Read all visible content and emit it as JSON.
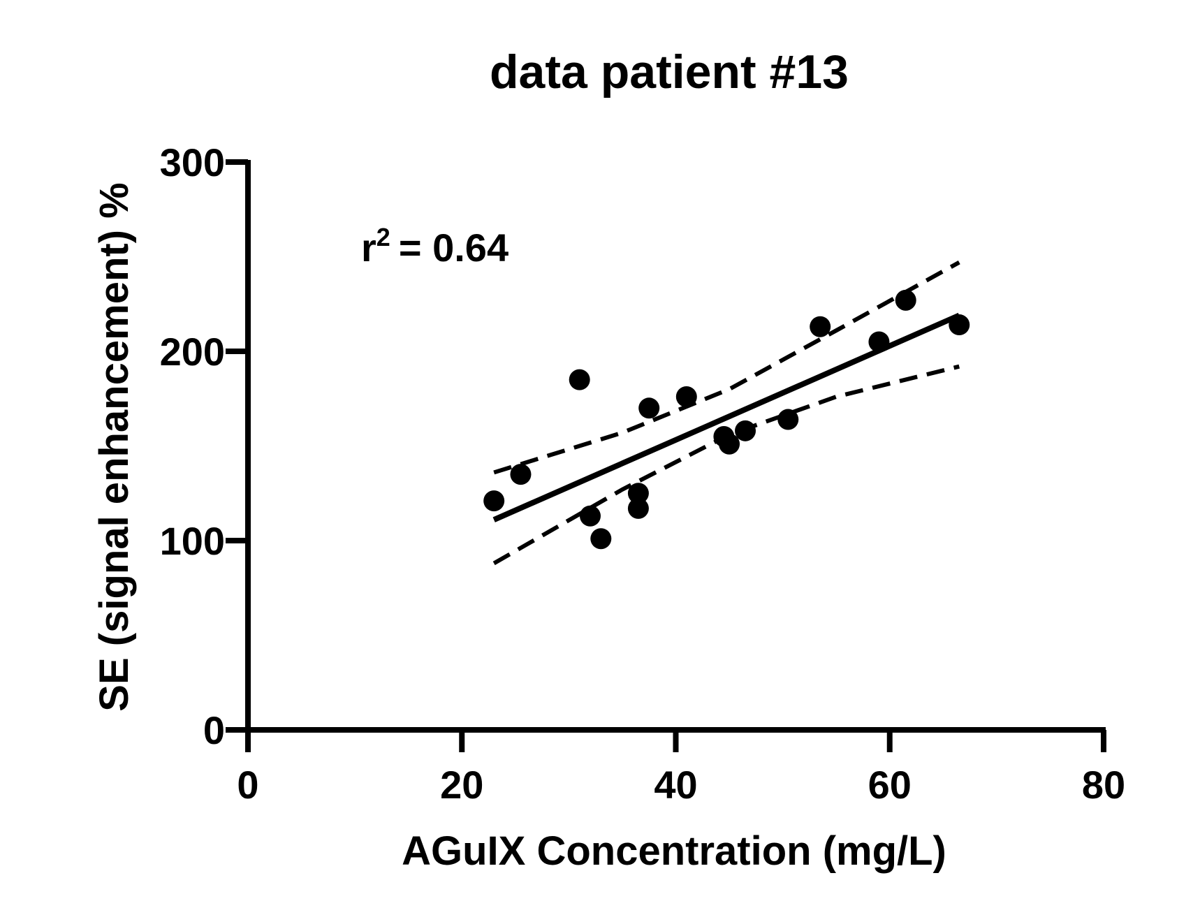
{
  "chart_data": {
    "type": "scatter",
    "title": "data patient #13",
    "xlabel": "AGuIX Concentration (mg/L)",
    "ylabel": "SE (signal enhancement) %",
    "xlim": [
      0,
      80
    ],
    "ylim": [
      0,
      300
    ],
    "x_ticks": [
      "0",
      "20",
      "40",
      "60",
      "80"
    ],
    "y_ticks": [
      "0",
      "100",
      "200",
      "300"
    ],
    "x_tick_values": [
      0,
      20,
      40,
      60,
      80
    ],
    "y_tick_values": [
      0,
      100,
      200,
      300
    ],
    "grid": false,
    "annotation": {
      "base": "r",
      "superscript": "2",
      "text": "= 0.64"
    },
    "points": [
      {
        "x": 23.0,
        "y": 121
      },
      {
        "x": 25.5,
        "y": 135
      },
      {
        "x": 31.0,
        "y": 185
      },
      {
        "x": 32.0,
        "y": 113
      },
      {
        "x": 33.0,
        "y": 101
      },
      {
        "x": 36.5,
        "y": 125
      },
      {
        "x": 36.5,
        "y": 117
      },
      {
        "x": 37.5,
        "y": 170
      },
      {
        "x": 41.0,
        "y": 176
      },
      {
        "x": 44.5,
        "y": 155
      },
      {
        "x": 45.0,
        "y": 151
      },
      {
        "x": 46.5,
        "y": 158
      },
      {
        "x": 50.5,
        "y": 164
      },
      {
        "x": 53.5,
        "y": 213
      },
      {
        "x": 59.0,
        "y": 205
      },
      {
        "x": 61.5,
        "y": 227
      },
      {
        "x": 66.5,
        "y": 214
      }
    ],
    "fit_line": {
      "x": [
        23,
        66.5
      ],
      "y": [
        111,
        219
      ]
    },
    "ci_upper": {
      "x": [
        23,
        35,
        45,
        55,
        66.5
      ],
      "y": [
        136,
        157,
        180,
        211,
        247
      ]
    },
    "ci_lower": {
      "x": [
        23,
        35,
        45,
        55,
        66.5
      ],
      "y": [
        88,
        127,
        156,
        176,
        192
      ]
    }
  }
}
